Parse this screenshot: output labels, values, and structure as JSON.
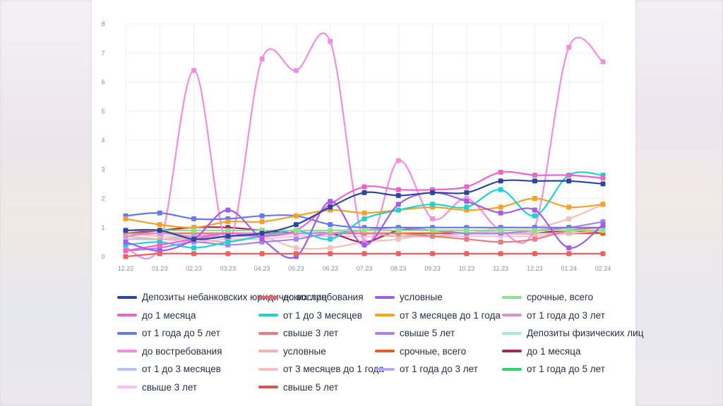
{
  "chart_data": {
    "type": "line",
    "title": "",
    "xlabel": "",
    "ylabel": "",
    "ylim": [
      0,
      8
    ],
    "yticks": [
      "0",
      "1",
      "2",
      "3",
      "4",
      "5",
      "6",
      "7",
      "8"
    ],
    "grid": true,
    "legend_position": "bottom",
    "categories": [
      "12.22",
      "01.23",
      "02.23",
      "03.23",
      "04.23",
      "05.23",
      "06.23",
      "07.23",
      "08.23",
      "09.23",
      "10.23",
      "11.23",
      "12.23",
      "01.24",
      "02.24"
    ],
    "series": [
      {
        "name": "Депозиты небанковских юридических лиц",
        "color": "#2f45a0",
        "values": [
          0.9,
          0.9,
          0.6,
          0.7,
          0.8,
          1.1,
          1.7,
          2.2,
          2.1,
          2.2,
          2.2,
          2.6,
          2.6,
          2.6,
          2.5
        ]
      },
      {
        "name": "до востребования",
        "color": "#ee5f62",
        "values": [
          0.0,
          0.1,
          0.1,
          0.1,
          0.1,
          0.1,
          0.1,
          0.1,
          0.1,
          0.1,
          0.1,
          0.1,
          0.1,
          0.1,
          0.1
        ]
      },
      {
        "name": "условные",
        "color": "#a05de8",
        "values": [
          0.5,
          0.2,
          0.6,
          1.6,
          0.6,
          0.0,
          1.9,
          0.4,
          1.8,
          2.2,
          1.9,
          1.5,
          1.6,
          0.3,
          1.1
        ]
      },
      {
        "name": "срочные, всего",
        "color": "#8ee28a",
        "values": [
          0.9,
          0.9,
          0.9,
          0.9,
          0.9,
          0.9,
          0.9,
          0.9,
          0.9,
          0.9,
          0.9,
          0.9,
          0.9,
          0.9,
          0.9
        ]
      },
      {
        "name": "до 1 месяца",
        "color": "#f062c8",
        "values": [
          0.2,
          0.4,
          0.6,
          0.8,
          0.7,
          0.9,
          1.8,
          2.4,
          2.3,
          2.3,
          2.4,
          2.9,
          2.8,
          2.8,
          2.7
        ]
      },
      {
        "name": "от 1 до 3 месяцев",
        "color": "#22d0d2",
        "values": [
          0.4,
          0.5,
          0.3,
          0.5,
          0.7,
          0.9,
          0.6,
          1.3,
          1.6,
          1.8,
          1.7,
          2.3,
          1.4,
          2.8,
          2.8
        ]
      },
      {
        "name": "от 3 месяцев до 1 года",
        "color": "#f5a026",
        "values": [
          1.3,
          1.1,
          1.0,
          1.2,
          1.2,
          1.4,
          1.6,
          1.5,
          1.6,
          1.7,
          1.6,
          1.7,
          2.0,
          1.7,
          1.8
        ]
      },
      {
        "name": "от 1 года до 3 лет",
        "color": "#d993d0",
        "values": [
          0.7,
          0.8,
          0.7,
          0.8,
          0.8,
          0.8,
          0.8,
          0.9,
          0.9,
          0.9,
          0.9,
          0.9,
          0.9,
          0.9,
          0.9
        ]
      },
      {
        "name": "от 1 года до 5 лет",
        "color": "#6978e8",
        "values": [
          1.4,
          1.5,
          1.3,
          1.3,
          1.4,
          1.4,
          1.1,
          1.0,
          1.0,
          1.0,
          1.0,
          1.0,
          1.0,
          1.0,
          1.0
        ]
      },
      {
        "name": "свыше 3 лет",
        "color": "#e47d7f",
        "values": [
          0.8,
          0.8,
          0.8,
          0.8,
          0.8,
          0.8,
          0.8,
          0.8,
          0.8,
          0.7,
          0.6,
          0.5,
          0.6,
          0.9,
          1.0
        ]
      },
      {
        "name": "свыше 5 лет",
        "color": "#a884e4",
        "values": [
          0.2,
          0.3,
          0.5,
          0.4,
          0.5,
          0.6,
          0.8,
          0.9,
          1.0,
          0.9,
          0.8,
          0.8,
          0.9,
          1.0,
          1.2
        ]
      },
      {
        "name": "Депозиты физических лиц",
        "color": "#a6ecc8",
        "values": [
          0.8,
          0.8,
          0.8,
          0.8,
          0.8,
          0.8,
          0.9,
          0.9,
          0.9,
          0.9,
          0.9,
          0.9,
          0.9,
          0.9,
          0.9
        ]
      },
      {
        "name": "до востребования",
        "color": "#f28ee0",
        "values": [
          0.3,
          0.4,
          6.4,
          0.5,
          6.8,
          6.4,
          7.4,
          0.5,
          3.3,
          1.3,
          2.0,
          0.9,
          1.0,
          7.2,
          6.7
        ]
      },
      {
        "name": "условные",
        "color": "#eab6ae",
        "values": [
          0.7,
          0.6,
          0.6,
          0.5,
          0.7,
          0.8,
          0.8,
          0.8,
          0.7,
          0.7,
          0.8,
          0.8,
          0.8,
          0.8,
          0.9
        ]
      },
      {
        "name": "срочные, всего",
        "color": "#e0602a",
        "values": [
          0.8,
          0.8,
          0.8,
          0.8,
          0.8,
          0.8,
          0.8,
          0.8,
          0.8,
          0.8,
          0.8,
          0.8,
          0.8,
          0.8,
          0.8
        ]
      },
      {
        "name": "до 1 месяца",
        "color": "#9e2a56",
        "values": [
          0.8,
          0.9,
          1.0,
          1.0,
          0.9,
          0.8,
          0.8,
          0.5,
          0.9,
          0.9,
          0.8,
          0.8,
          0.8,
          0.9,
          0.8
        ]
      },
      {
        "name": "от 1 до 3 месяцев",
        "color": "#b4c6f0",
        "values": [
          0.6,
          0.6,
          0.7,
          0.7,
          0.7,
          0.8,
          0.8,
          0.8,
          0.7,
          0.8,
          0.8,
          0.9,
          0.9,
          0.9,
          0.9
        ]
      },
      {
        "name": "от 3 месяцев до 1 года",
        "color": "#f2c2b8",
        "values": [
          0.8,
          0.7,
          0.7,
          0.8,
          0.7,
          0.3,
          0.3,
          0.5,
          0.6,
          0.8,
          0.8,
          1.0,
          1.0,
          1.3,
          1.8
        ]
      },
      {
        "name": "от 1 года до 3 лет",
        "color": "#b9a6f4",
        "values": [
          0.6,
          0.6,
          0.6,
          0.7,
          0.7,
          0.8,
          0.8,
          0.8,
          0.8,
          0.8,
          0.8,
          0.9,
          0.9,
          0.9,
          0.9
        ]
      },
      {
        "name": "от 1 года до 5 лет",
        "color": "#2cd46a",
        "values": [
          0.8,
          0.8,
          0.8,
          0.8,
          0.8,
          0.8,
          0.8,
          0.8,
          0.8,
          0.8,
          0.8,
          0.8,
          0.8,
          0.8,
          0.8
        ]
      },
      {
        "name": "свыше 3 лет",
        "color": "#f8c0ec",
        "values": [
          0.6,
          0.6,
          0.5,
          0.6,
          0.6,
          0.7,
          0.7,
          0.7,
          0.7,
          0.7,
          0.7,
          0.7,
          0.7,
          0.8,
          0.8
        ]
      },
      {
        "name": "свыше 5 лет",
        "color": "#de5050",
        "values": [
          0.8,
          0.8,
          0.8,
          0.8,
          0.8,
          0.8,
          0.8,
          0.8,
          0.8,
          0.8,
          0.8,
          0.8,
          0.8,
          0.8,
          0.8
        ]
      }
    ]
  }
}
